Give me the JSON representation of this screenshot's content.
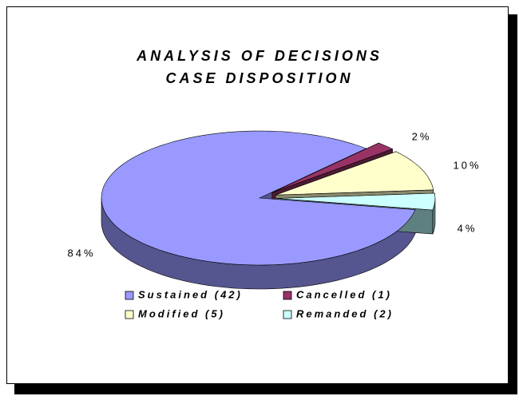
{
  "chart_data": {
    "type": "pie3d",
    "title": [
      "ANALYSIS OF DECISIONS",
      "CASE DISPOSITION"
    ],
    "series": [
      {
        "name": "Sustained (42)",
        "color": "#9999ff",
        "side": "#55558f"
      },
      {
        "name": "Cancelled (1)",
        "color": "#993366",
        "side": "#4d1a33"
      },
      {
        "name": "Modified (5)",
        "color": "#ffffcc",
        "side": "#8a8a6e"
      },
      {
        "name": "Remanded (2)",
        "color": "#ccffff",
        "side": "#5f8080"
      }
    ],
    "values": [
      84,
      2,
      10,
      4
    ],
    "value_labels": [
      "84%",
      "2%",
      "10%",
      "4%"
    ],
    "exploded": [
      false,
      true,
      true,
      true
    ],
    "legend": "bottom"
  }
}
